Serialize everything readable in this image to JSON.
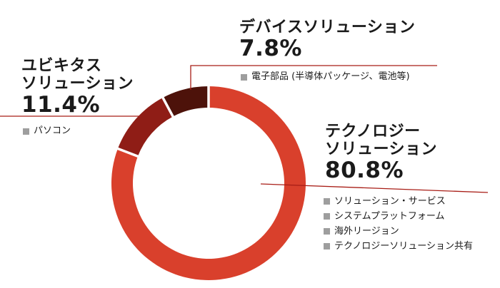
{
  "chart_data": {
    "type": "pie",
    "donut": true,
    "slices": [
      {
        "name": "テクノロジー\nソリューション",
        "value": 80.8,
        "pct_label": "80.8%",
        "color": "#d9402c",
        "items": [
          "ソリューション・サービス",
          "システムプラットフォーム",
          "海外リージョン",
          "テクノロジーソリューション共有"
        ]
      },
      {
        "name": "ユビキタス\nソリューション",
        "value": 11.4,
        "pct_label": "11.4%",
        "color": "#8f1d16",
        "items": [
          "パソコン"
        ]
      },
      {
        "name": "デバイスソリューション",
        "value": 7.8,
        "pct_label": "7.8%",
        "color": "#4d120a",
        "items": [
          "電子部品 (半導体パッケージ、電池等)"
        ]
      }
    ],
    "start": "top",
    "direction": "clockwise"
  },
  "colors": {
    "leader_line": "#a81d16",
    "separator": "#ffffff",
    "bullet": "#9e9e9e"
  }
}
